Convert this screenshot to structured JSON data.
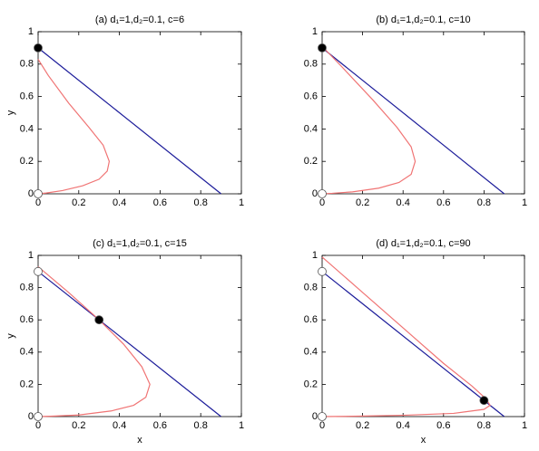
{
  "chart_data": [
    {
      "type": "line",
      "title": "(a) d₁=1,d₂=0.1, c=6",
      "ylabel": "y",
      "xlim": [
        0,
        1
      ],
      "ylim": [
        0,
        1
      ],
      "xticks": [
        0,
        0.2,
        0.4,
        0.6,
        0.8,
        1
      ],
      "yticks": [
        0,
        0.2,
        0.4,
        0.6,
        0.8,
        1
      ],
      "series": [
        {
          "color": "#1c1c9a",
          "x": [
            0,
            0.9
          ],
          "values": [
            0.9,
            0
          ]
        },
        {
          "color": "#f07474",
          "x": [
            0,
            0.05,
            0.15,
            0.25,
            0.32,
            0.35,
            0.34,
            0.3,
            0.22,
            0.12,
            0.04,
            0
          ],
          "values": [
            0.83,
            0.73,
            0.56,
            0.41,
            0.3,
            0.2,
            0.14,
            0.09,
            0.05,
            0.02,
            0.005,
            0
          ]
        }
      ],
      "markers": {
        "x": [
          0,
          0
        ],
        "values": [
          0.9,
          0
        ],
        "fill": [
          "#000000",
          "#ffffff"
        ]
      }
    },
    {
      "type": "line",
      "title": "(b) d₁=1,d₂=0.1, c=10",
      "xlim": [
        0,
        1
      ],
      "ylim": [
        0,
        1
      ],
      "xticks": [
        0,
        0.2,
        0.4,
        0.6,
        0.8,
        1
      ],
      "yticks": [
        0,
        0.2,
        0.4,
        0.6,
        0.8,
        1
      ],
      "series": [
        {
          "color": "#1c1c9a",
          "x": [
            0,
            0.9
          ],
          "values": [
            0.9,
            0
          ]
        },
        {
          "color": "#f07474",
          "x": [
            0,
            0.1,
            0.25,
            0.37,
            0.44,
            0.46,
            0.44,
            0.38,
            0.28,
            0.15,
            0.05,
            0
          ],
          "values": [
            0.91,
            0.78,
            0.58,
            0.41,
            0.29,
            0.2,
            0.12,
            0.07,
            0.035,
            0.012,
            0.003,
            0
          ]
        }
      ],
      "markers": {
        "x": [
          0,
          0
        ],
        "values": [
          0.9,
          0
        ],
        "fill": [
          "#000000",
          "#ffffff"
        ]
      }
    },
    {
      "type": "line",
      "title": "(c) d₁=1,d₂=0.1, c=15",
      "xlabel": "x",
      "ylabel": "y",
      "xlim": [
        0,
        1
      ],
      "ylim": [
        0,
        1
      ],
      "xticks": [
        0,
        0.2,
        0.4,
        0.6,
        0.8,
        1
      ],
      "yticks": [
        0,
        0.2,
        0.4,
        0.6,
        0.8,
        1
      ],
      "series": [
        {
          "color": "#1c1c9a",
          "x": [
            0,
            0.9
          ],
          "values": [
            0.9,
            0
          ]
        },
        {
          "color": "#f07474",
          "x": [
            0,
            0.15,
            0.3,
            0.42,
            0.51,
            0.55,
            0.53,
            0.47,
            0.36,
            0.2,
            0.06,
            0
          ],
          "values": [
            0.93,
            0.77,
            0.6,
            0.45,
            0.31,
            0.2,
            0.12,
            0.07,
            0.035,
            0.01,
            0.002,
            0
          ]
        }
      ],
      "markers": {
        "x": [
          0,
          0.3,
          0
        ],
        "values": [
          0.9,
          0.6,
          0
        ],
        "fill": [
          "#ffffff",
          "#000000",
          "#ffffff"
        ]
      }
    },
    {
      "type": "line",
      "title": "(d) d₁=1,d₂=0.1, c=90",
      "xlabel": "x",
      "xlim": [
        0,
        1
      ],
      "ylim": [
        0,
        1
      ],
      "xticks": [
        0,
        0.2,
        0.4,
        0.6,
        0.8,
        1
      ],
      "yticks": [
        0,
        0.2,
        0.4,
        0.6,
        0.8,
        1
      ],
      "series": [
        {
          "color": "#1c1c9a",
          "x": [
            0,
            0.9
          ],
          "values": [
            0.9,
            0
          ]
        },
        {
          "color": "#f07474",
          "x": [
            0,
            0.2,
            0.4,
            0.6,
            0.74,
            0.81,
            0.83,
            0.8,
            0.65,
            0.4,
            0.15,
            0
          ],
          "values": [
            0.99,
            0.77,
            0.55,
            0.33,
            0.19,
            0.11,
            0.07,
            0.045,
            0.02,
            0.008,
            0.002,
            0
          ]
        }
      ],
      "markers": {
        "x": [
          0,
          0.8,
          0
        ],
        "values": [
          0.9,
          0.1,
          0
        ],
        "fill": [
          "#ffffff",
          "#000000",
          "#ffffff"
        ]
      }
    }
  ]
}
